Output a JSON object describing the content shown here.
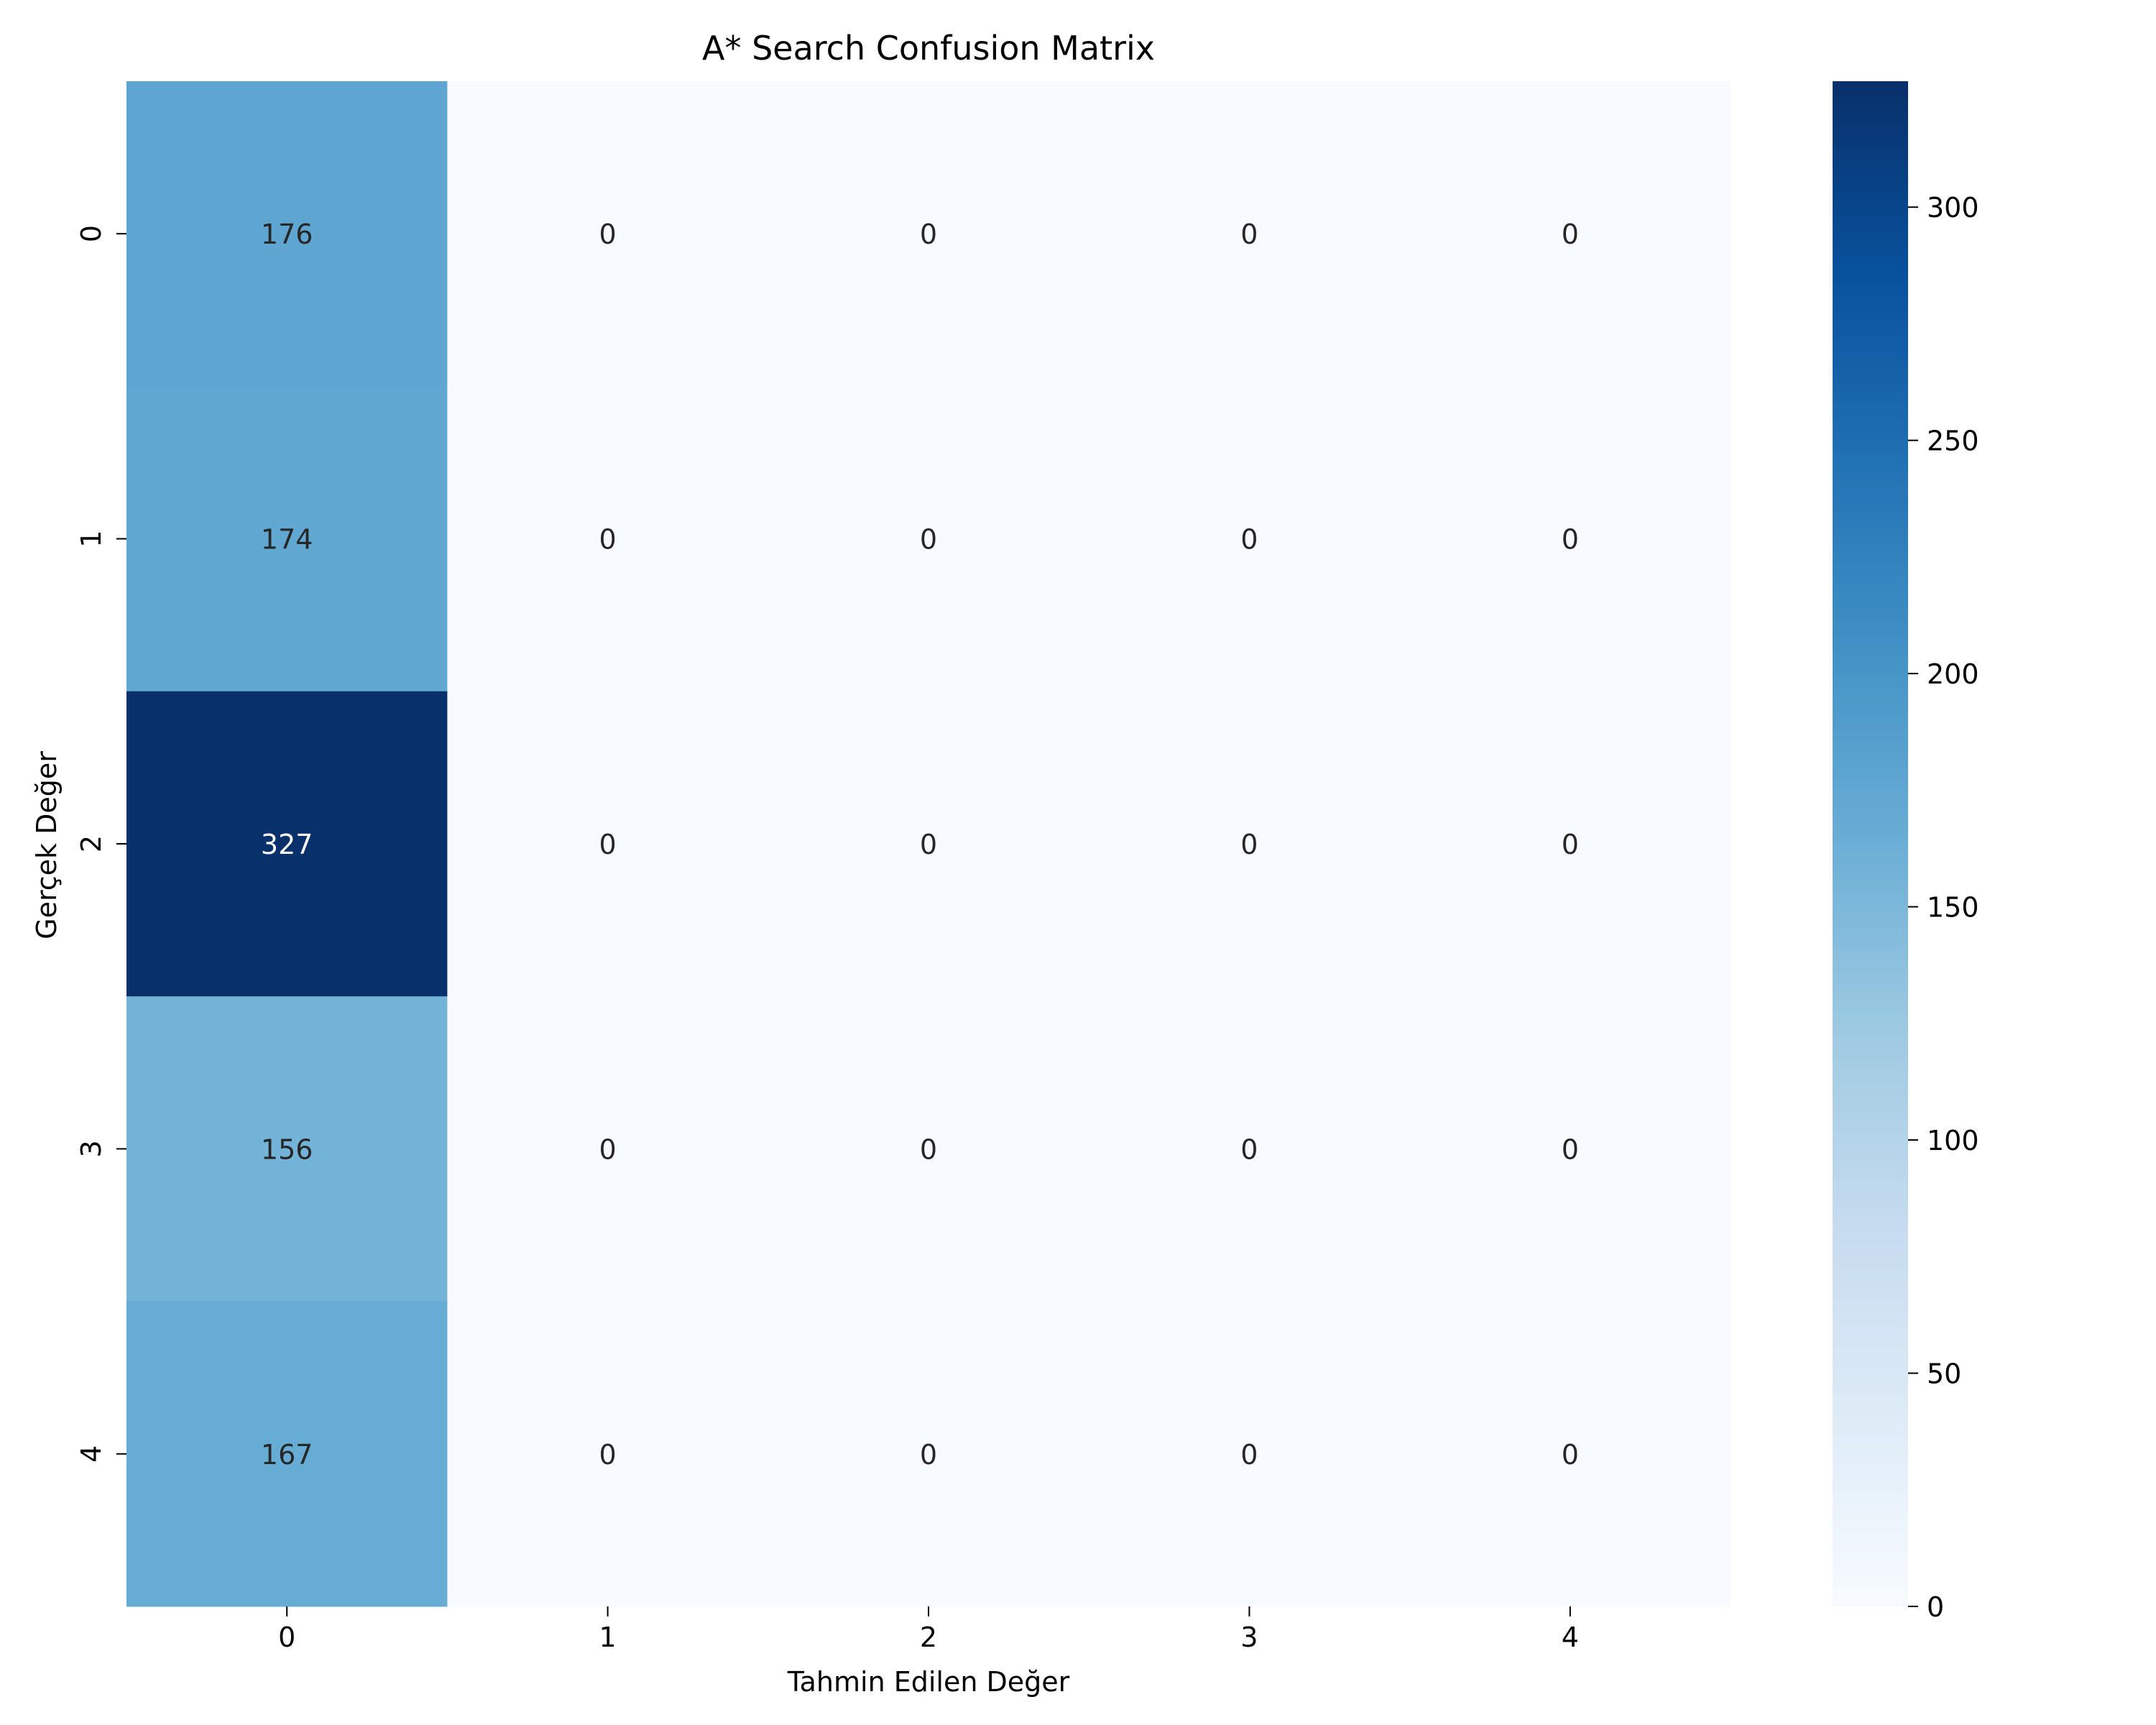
{
  "chart_data": {
    "type": "heatmap",
    "title": "A* Search Confusion Matrix",
    "xlabel": "Tahmin Edilen Değer",
    "ylabel": "Gerçek Değer",
    "x_categories": [
      "0",
      "1",
      "2",
      "3",
      "4"
    ],
    "y_categories": [
      "0",
      "1",
      "2",
      "3",
      "4"
    ],
    "values": [
      [
        176,
        0,
        0,
        0,
        0
      ],
      [
        174,
        0,
        0,
        0,
        0
      ],
      [
        327,
        0,
        0,
        0,
        0
      ],
      [
        156,
        0,
        0,
        0,
        0
      ],
      [
        167,
        0,
        0,
        0,
        0
      ]
    ],
    "colorscale": "Blues",
    "color_range": [
      0,
      327
    ],
    "colorbar_ticks": [
      0,
      50,
      100,
      150,
      200,
      250,
      300
    ],
    "annotations": true
  }
}
